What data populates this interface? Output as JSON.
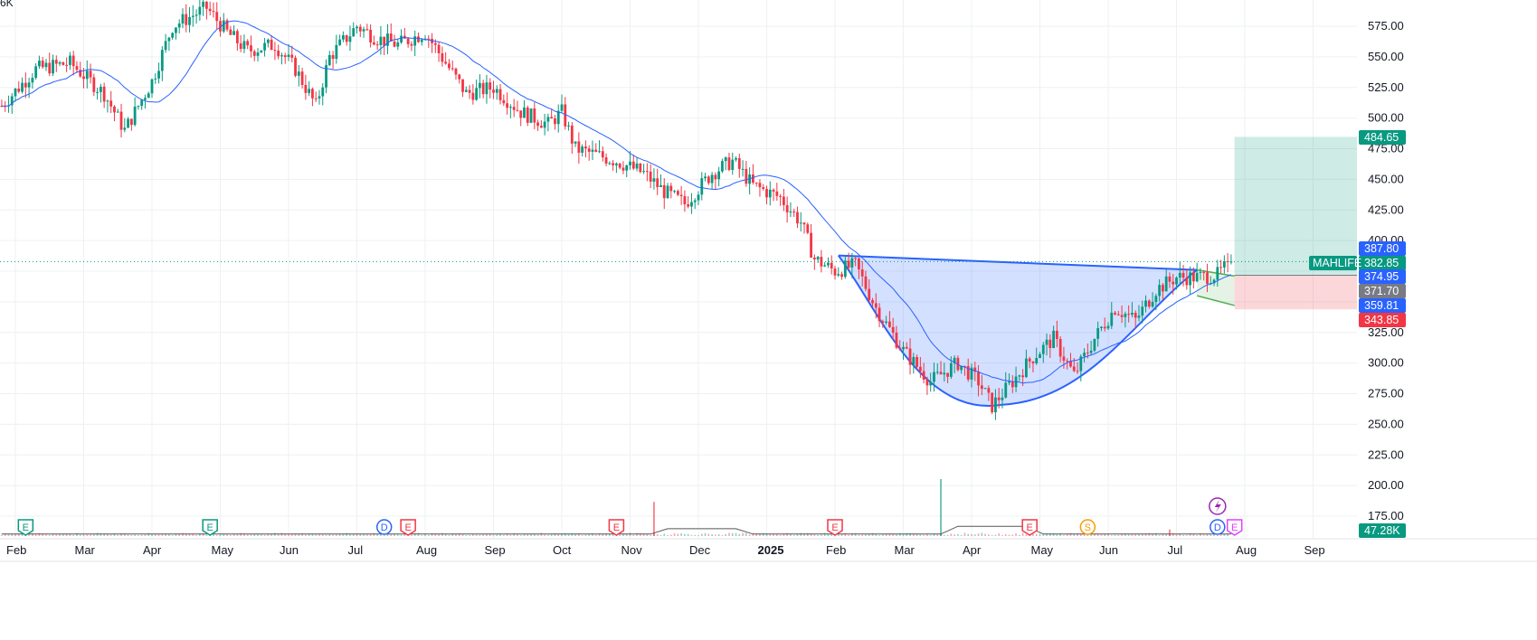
{
  "chart_data": {
    "type": "candlestick",
    "symbol": "MAHLIFE",
    "volume_scale_label": "6K",
    "y_ticks": [
      175,
      200,
      225,
      250,
      275,
      300,
      325,
      350,
      375,
      400,
      425,
      450,
      475,
      500,
      525,
      550,
      575
    ],
    "y_tick_labels": [
      "175.00",
      "200.00",
      "225.00",
      "250.00",
      "275.00",
      "300.00",
      "325.00",
      "",
      "",
      "400.00",
      "425.00",
      "450.00",
      "475.00",
      "500.00",
      "525.00",
      "550.00",
      "575.00"
    ],
    "x_labels": [
      {
        "label": "Feb",
        "month_index": 0
      },
      {
        "label": "Mar",
        "month_index": 1
      },
      {
        "label": "Apr",
        "month_index": 2
      },
      {
        "label": "May",
        "month_index": 3
      },
      {
        "label": "Jun",
        "month_index": 4
      },
      {
        "label": "Jul",
        "month_index": 5
      },
      {
        "label": "Aug",
        "month_index": 6
      },
      {
        "label": "Sep",
        "month_index": 7
      },
      {
        "label": "Oct",
        "month_index": 8
      },
      {
        "label": "Nov",
        "month_index": 9
      },
      {
        "label": "Dec",
        "month_index": 10
      },
      {
        "label": "2025",
        "month_index": 11,
        "bold": true
      },
      {
        "label": "Feb",
        "month_index": 12
      },
      {
        "label": "Mar",
        "month_index": 13
      },
      {
        "label": "Apr",
        "month_index": 14
      },
      {
        "label": "May",
        "month_index": 15
      },
      {
        "label": "Jun",
        "month_index": 16
      },
      {
        "label": "Jul",
        "month_index": 17
      },
      {
        "label": "Aug",
        "month_index": 18
      },
      {
        "label": "Sep",
        "month_index": 19
      }
    ],
    "price_path": [
      {
        "m": -0.2,
        "p": 510
      },
      {
        "m": 0.3,
        "p": 540
      },
      {
        "m": 0.8,
        "p": 545
      },
      {
        "m": 1.3,
        "p": 520
      },
      {
        "m": 1.6,
        "p": 490
      },
      {
        "m": 2.0,
        "p": 530
      },
      {
        "m": 2.3,
        "p": 575
      },
      {
        "m": 2.8,
        "p": 590
      },
      {
        "m": 3.1,
        "p": 570
      },
      {
        "m": 3.4,
        "p": 555
      },
      {
        "m": 3.8,
        "p": 560
      },
      {
        "m": 4.1,
        "p": 540
      },
      {
        "m": 4.4,
        "p": 510
      },
      {
        "m": 4.6,
        "p": 550
      },
      {
        "m": 5.0,
        "p": 575
      },
      {
        "m": 5.3,
        "p": 565
      },
      {
        "m": 5.6,
        "p": 560
      },
      {
        "m": 6.0,
        "p": 570
      },
      {
        "m": 6.3,
        "p": 545
      },
      {
        "m": 6.6,
        "p": 520
      },
      {
        "m": 7.0,
        "p": 525
      },
      {
        "m": 7.4,
        "p": 505
      },
      {
        "m": 7.8,
        "p": 495
      },
      {
        "m": 8.0,
        "p": 505
      },
      {
        "m": 8.2,
        "p": 475
      },
      {
        "m": 8.5,
        "p": 470
      },
      {
        "m": 8.8,
        "p": 465
      },
      {
        "m": 9.2,
        "p": 455
      },
      {
        "m": 9.5,
        "p": 440
      },
      {
        "m": 9.8,
        "p": 430
      },
      {
        "m": 10.2,
        "p": 455
      },
      {
        "m": 10.5,
        "p": 465
      },
      {
        "m": 10.8,
        "p": 445
      },
      {
        "m": 11.2,
        "p": 435
      },
      {
        "m": 11.5,
        "p": 415
      },
      {
        "m": 11.7,
        "p": 385
      },
      {
        "m": 12.0,
        "p": 375
      },
      {
        "m": 12.3,
        "p": 380
      },
      {
        "m": 12.6,
        "p": 345
      },
      {
        "m": 13.0,
        "p": 310
      },
      {
        "m": 13.4,
        "p": 285
      },
      {
        "m": 13.8,
        "p": 300
      },
      {
        "m": 14.1,
        "p": 285
      },
      {
        "m": 14.3,
        "p": 265
      },
      {
        "m": 14.6,
        "p": 285
      },
      {
        "m": 14.9,
        "p": 305
      },
      {
        "m": 15.2,
        "p": 320
      },
      {
        "m": 15.5,
        "p": 290
      },
      {
        "m": 15.8,
        "p": 320
      },
      {
        "m": 16.1,
        "p": 345
      },
      {
        "m": 16.4,
        "p": 335
      },
      {
        "m": 16.7,
        "p": 360
      },
      {
        "m": 17.0,
        "p": 370
      },
      {
        "m": 17.3,
        "p": 370
      },
      {
        "m": 17.6,
        "p": 372
      },
      {
        "m": 17.8,
        "p": 383
      }
    ],
    "volume_spikes": [
      {
        "m": 9.35,
        "v": 0.42
      },
      {
        "m": 13.55,
        "v": 0.7
      },
      {
        "m": 16.9,
        "v": 0.08
      }
    ],
    "pattern": {
      "name": "cup-and-handle",
      "cup_left": {
        "m": 12.05,
        "p": 387.8
      },
      "cup_right": {
        "m": 17.3,
        "p": 376
      },
      "cup_bottom": {
        "m": 14.45,
        "p": 266
      },
      "handle_top": [
        {
          "m": 17.3,
          "p": 376
        },
        {
          "m": 17.85,
          "p": 371
        }
      ],
      "handle_bottom": [
        {
          "m": 17.3,
          "p": 355
        },
        {
          "m": 17.85,
          "p": 347
        }
      ]
    },
    "position": {
      "start_m": 17.85,
      "end_m": 19.95,
      "entry": 371.7,
      "target": 484.65,
      "stop": 343.85
    },
    "last_price": 382.85,
    "event_markers": [
      {
        "m": 0.15,
        "letter": "E",
        "color": "#089981"
      },
      {
        "m": 2.85,
        "letter": "E",
        "color": "#089981"
      },
      {
        "m": 5.4,
        "letter": "D",
        "color": "#2962ff"
      },
      {
        "m": 5.75,
        "letter": "E",
        "color": "#f23645"
      },
      {
        "m": 8.8,
        "letter": "E",
        "color": "#f23645"
      },
      {
        "m": 12.0,
        "letter": "E",
        "color": "#f23645"
      },
      {
        "m": 14.85,
        "letter": "E",
        "color": "#f23645"
      },
      {
        "m": 15.7,
        "letter": "S",
        "color": "#ff9800"
      },
      {
        "m": 17.6,
        "letter": "D",
        "color": "#2962ff"
      },
      {
        "m": 17.85,
        "letter": "E",
        "color": "#e040fb"
      }
    ],
    "flash_marker": {
      "m": 17.6,
      "color": "#9c27b0"
    }
  },
  "price_tags": [
    {
      "key": "target",
      "text": "484.65",
      "price": 484.65,
      "color": "#089981"
    },
    {
      "key": "t1",
      "text": "387.80",
      "price": 387.8,
      "color": "#2962ff"
    },
    {
      "key": "last",
      "text": "382.85",
      "price": 382.85,
      "color": "#089981"
    },
    {
      "key": "t2",
      "text": "374.95",
      "price": 374.95,
      "color": "#2962ff"
    },
    {
      "key": "entry",
      "text": "371.70",
      "price": 371.7,
      "color": "#787b86"
    },
    {
      "key": "t3",
      "text": "359.81",
      "price": 359.81,
      "color": "#2962ff"
    },
    {
      "key": "stop",
      "text": "343.85",
      "price": 343.85,
      "color": "#f23645"
    }
  ],
  "symbol_tag": {
    "text": "MAHLIFE",
    "color": "#089981"
  },
  "volume_tag": {
    "text": "47.28K",
    "color": "#089981"
  },
  "colors": {
    "up": "#089981",
    "down": "#f23645",
    "ma": "#2962ff",
    "cup_fill": "#2962ff",
    "handle": "#4caf50",
    "profit_zone": "#089981",
    "loss_zone": "#f23645"
  }
}
